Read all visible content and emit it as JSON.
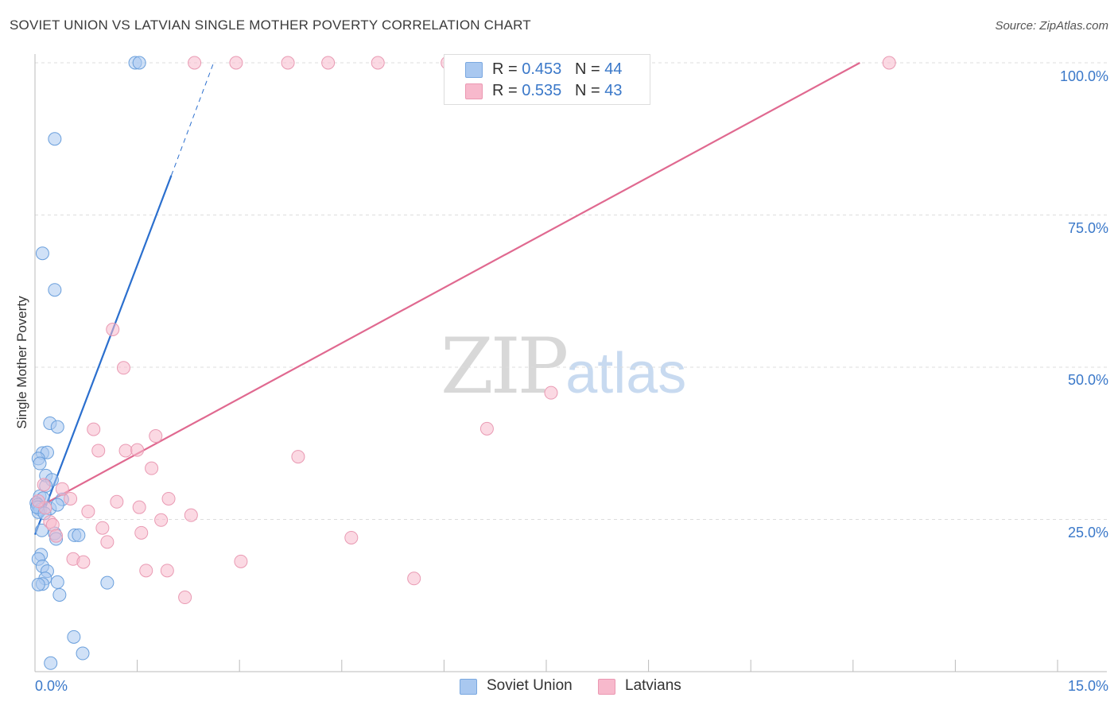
{
  "header": {
    "title": "SOVIET UNION VS LATVIAN SINGLE MOTHER POVERTY CORRELATION CHART",
    "source": "Source: ZipAtlas.com"
  },
  "legend": {
    "rows": [
      {
        "r_label": "R =",
        "r_value": "0.453",
        "n_label": "N =",
        "n_value": "44",
        "color": "#a9c8f0"
      },
      {
        "r_label": "R =",
        "r_value": "0.535",
        "n_label": "N =",
        "n_value": "43",
        "color": "#f7b9cc"
      }
    ]
  },
  "bottom_legend": {
    "items": [
      {
        "label": "Soviet Union",
        "color": "#a9c8f0"
      },
      {
        "label": "Latvians",
        "color": "#f7b9cc"
      }
    ]
  },
  "watermark": {
    "zip": "ZIP",
    "atlas": "atlas"
  },
  "colors": {
    "blue": "#3a78c9",
    "blue_fill": "#a9c8f0",
    "blue_line": "#2b6fce",
    "pink": "#e57097",
    "pink_fill": "#f7b9cc",
    "pink_line": "#e06990",
    "grid": "#dddddd",
    "axis_text": "#3a78c9"
  },
  "chart_data": {
    "type": "scatter",
    "title": "SOVIET UNION VS LATVIAN SINGLE MOTHER POVERTY CORRELATION CHART",
    "xlabel": "",
    "ylabel": "Single Mother Poverty",
    "xlim": [
      0,
      15
    ],
    "ylim": [
      0,
      100
    ],
    "x_tick_labels": [
      "0.0%",
      "15.0%"
    ],
    "y_tick_labels": [
      "25.0%",
      "50.0%",
      "75.0%",
      "100.0%"
    ],
    "y_tick_values": [
      25,
      50,
      75,
      100
    ],
    "grid": true,
    "series": [
      {
        "name": "Soviet Union",
        "color": "#a9c8f0",
        "stroke": "#6a9fdc",
        "points": [
          [
            1.47,
            100
          ],
          [
            1.53,
            100
          ],
          [
            0.29,
            87.5
          ],
          [
            0.11,
            68.7
          ],
          [
            0.29,
            62.7
          ],
          [
            0.22,
            40.8
          ],
          [
            0.33,
            40.2
          ],
          [
            0.11,
            35.9
          ],
          [
            0.18,
            36.0
          ],
          [
            0.05,
            35.0
          ],
          [
            0.07,
            34.2
          ],
          [
            0.16,
            32.2
          ],
          [
            0.25,
            31.5
          ],
          [
            0.16,
            30.5
          ],
          [
            0.4,
            28.3
          ],
          [
            0.07,
            28.8
          ],
          [
            0.12,
            28.5
          ],
          [
            0.02,
            27.7
          ],
          [
            0.04,
            27.4
          ],
          [
            0.06,
            27.0
          ],
          [
            0.08,
            26.6
          ],
          [
            0.22,
            26.8
          ],
          [
            0.05,
            26.2
          ],
          [
            0.33,
            27.4
          ],
          [
            0.1,
            23.2
          ],
          [
            0.29,
            22.7
          ],
          [
            0.58,
            22.4
          ],
          [
            0.64,
            22.4
          ],
          [
            0.31,
            21.8
          ],
          [
            0.09,
            19.2
          ],
          [
            0.05,
            18.5
          ],
          [
            0.11,
            17.3
          ],
          [
            0.18,
            16.5
          ],
          [
            0.15,
            15.3
          ],
          [
            0.33,
            14.7
          ],
          [
            1.06,
            14.6
          ],
          [
            0.11,
            14.4
          ],
          [
            0.05,
            14.3
          ],
          [
            0.36,
            12.6
          ],
          [
            0.57,
            5.7
          ],
          [
            0.7,
            3.0
          ],
          [
            0.23,
            1.4
          ],
          [
            0.03,
            27.0
          ],
          [
            0.14,
            26.0
          ]
        ],
        "trend": {
          "x": [
            0.0,
            2.0
          ],
          "y": [
            22.5,
            81.5
          ]
        },
        "trend_dashed": {
          "x": [
            2.0,
            2.62
          ],
          "y": [
            81.5,
            100
          ]
        }
      },
      {
        "name": "Latvians",
        "color": "#f7b9cc",
        "stroke": "#e99ab3",
        "points": [
          [
            2.34,
            100
          ],
          [
            2.95,
            100
          ],
          [
            3.71,
            100
          ],
          [
            4.3,
            100
          ],
          [
            5.03,
            100
          ],
          [
            6.05,
            100
          ],
          [
            12.53,
            100
          ],
          [
            1.14,
            56.2
          ],
          [
            1.3,
            49.9
          ],
          [
            7.57,
            45.8
          ],
          [
            6.63,
            39.9
          ],
          [
            0.86,
            39.8
          ],
          [
            1.77,
            38.7
          ],
          [
            0.93,
            36.3
          ],
          [
            1.33,
            36.3
          ],
          [
            1.5,
            36.4
          ],
          [
            3.86,
            35.3
          ],
          [
            1.71,
            33.4
          ],
          [
            0.4,
            30.0
          ],
          [
            0.13,
            30.7
          ],
          [
            0.52,
            28.4
          ],
          [
            1.2,
            27.9
          ],
          [
            1.96,
            28.4
          ],
          [
            1.53,
            27.0
          ],
          [
            0.15,
            26.9
          ],
          [
            0.78,
            26.3
          ],
          [
            2.29,
            25.7
          ],
          [
            1.85,
            24.9
          ],
          [
            0.22,
            24.6
          ],
          [
            0.26,
            24.1
          ],
          [
            0.99,
            23.6
          ],
          [
            1.56,
            22.8
          ],
          [
            4.64,
            22.0
          ],
          [
            0.31,
            22.3
          ],
          [
            1.06,
            21.3
          ],
          [
            0.56,
            18.5
          ],
          [
            0.71,
            18.0
          ],
          [
            3.02,
            18.1
          ],
          [
            1.63,
            16.6
          ],
          [
            1.94,
            16.6
          ],
          [
            5.56,
            15.3
          ],
          [
            2.2,
            12.2
          ],
          [
            0.05,
            28.0
          ]
        ],
        "trend": {
          "x": [
            0.0,
            12.1
          ],
          "y": [
            26.7,
            100
          ]
        }
      }
    ]
  }
}
